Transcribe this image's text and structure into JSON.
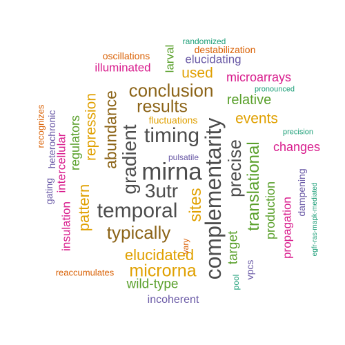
{
  "colors": {
    "gray": "#4d4d4d",
    "brown": "#8c6418",
    "gold": "#e0a000",
    "green": "#5aa02c",
    "magenta": "#d81b8c",
    "purple": "#6a5aa6",
    "orange": "#d95f02",
    "teal": "#1b9e77"
  },
  "words": [
    {
      "text": "mirna",
      "color": "gray"
    },
    {
      "text": "temporal",
      "color": "gray"
    },
    {
      "text": "complementarity",
      "color": "gray"
    },
    {
      "text": "timing",
      "color": "gray"
    },
    {
      "text": "3utr",
      "color": "gray"
    },
    {
      "text": "gradient",
      "color": "gray"
    },
    {
      "text": "precise",
      "color": "gray"
    },
    {
      "text": "conclusion",
      "color": "brown"
    },
    {
      "text": "results",
      "color": "brown"
    },
    {
      "text": "abundance",
      "color": "brown"
    },
    {
      "text": "typically",
      "color": "brown"
    },
    {
      "text": "sites",
      "color": "gold"
    },
    {
      "text": "elucidated",
      "color": "gold"
    },
    {
      "text": "microrna",
      "color": "gold"
    },
    {
      "text": "pattern",
      "color": "gold"
    },
    {
      "text": "repression",
      "color": "gold"
    },
    {
      "text": "used",
      "color": "gold"
    },
    {
      "text": "events",
      "color": "gold"
    },
    {
      "text": "fluctuations",
      "color": "gold"
    },
    {
      "text": "translational",
      "color": "green"
    },
    {
      "text": "relative",
      "color": "green"
    },
    {
      "text": "regulators",
      "color": "green"
    },
    {
      "text": "larval",
      "color": "green"
    },
    {
      "text": "wild-type",
      "color": "green"
    },
    {
      "text": "target",
      "color": "green"
    },
    {
      "text": "production",
      "color": "green"
    },
    {
      "text": "changes",
      "color": "magenta"
    },
    {
      "text": "microarrays",
      "color": "magenta"
    },
    {
      "text": "illuminated",
      "color": "magenta"
    },
    {
      "text": "intercellular",
      "color": "magenta"
    },
    {
      "text": "insulation",
      "color": "magenta"
    },
    {
      "text": "propagation",
      "color": "magenta"
    },
    {
      "text": "elucidating",
      "color": "purple"
    },
    {
      "text": "incoherent",
      "color": "purple"
    },
    {
      "text": "heterochronic",
      "color": "purple"
    },
    {
      "text": "gating",
      "color": "purple"
    },
    {
      "text": "dampening",
      "color": "purple"
    },
    {
      "text": "vpcs",
      "color": "purple"
    },
    {
      "text": "pulsatile",
      "color": "purple"
    },
    {
      "text": "oscillations",
      "color": "orange"
    },
    {
      "text": "destabilization",
      "color": "orange"
    },
    {
      "text": "recognizes",
      "color": "orange"
    },
    {
      "text": "reaccumulates",
      "color": "orange"
    },
    {
      "text": "vary",
      "color": "orange"
    },
    {
      "text": "randomized",
      "color": "teal"
    },
    {
      "text": "pronounced",
      "color": "teal"
    },
    {
      "text": "precision",
      "color": "teal"
    },
    {
      "text": "pool",
      "color": "teal"
    },
    {
      "text": "egfr-ras-mapk-mediated",
      "color": "teal"
    }
  ]
}
